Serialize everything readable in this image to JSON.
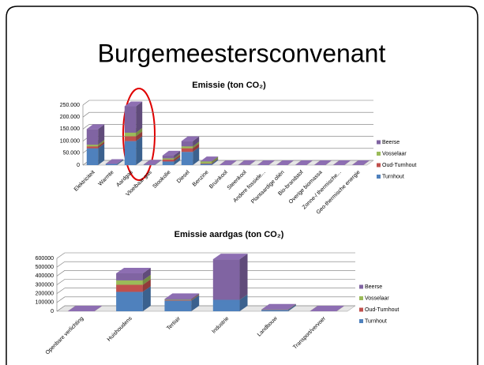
{
  "title": "Burgemeestersconvenant",
  "chart_data": [
    {
      "type": "bar3d-stacked",
      "title": "Emissie (ton CO₂)",
      "categories": [
        "Elektriciteit",
        "Warmte",
        "Aardgas",
        "Vloeibaar gas",
        "Stookolie",
        "Diesel",
        "Benzine",
        "Bruinkool",
        "Steenkool",
        "Andere fossiele...",
        "Plantaardige oliën",
        "Bio-brandstof",
        "Overige biomassa",
        "Zonne-/ thermische...",
        "Geo-thermische energie"
      ],
      "series": [
        {
          "name": "Turnhout",
          "color": "#4f81bd",
          "values": [
            70000,
            5000,
            100000,
            2000,
            15000,
            55000,
            5000,
            0,
            1000,
            0,
            0,
            0,
            0,
            0,
            0
          ]
        },
        {
          "name": "Oud-Turnhout",
          "color": "#c0504d",
          "values": [
            8000,
            0,
            20000,
            0,
            8000,
            15000,
            2000,
            0,
            0,
            0,
            0,
            0,
            0,
            0,
            0
          ]
        },
        {
          "name": "Vosselaar",
          "color": "#9bbb59",
          "values": [
            7000,
            0,
            15000,
            0,
            5000,
            8000,
            8000,
            0,
            0,
            0,
            0,
            0,
            0,
            0,
            0
          ]
        },
        {
          "name": "Beerse",
          "color": "#8064a2",
          "values": [
            65000,
            0,
            110000,
            0,
            12000,
            22000,
            1000,
            0,
            0,
            0,
            0,
            0,
            0,
            0,
            0
          ]
        }
      ],
      "ylim": [
        0,
        250000
      ],
      "yticks": [
        {
          "value": 0,
          "label": "0"
        },
        {
          "value": 50000,
          "label": "50.000"
        },
        {
          "value": 100000,
          "label": "100.000"
        },
        {
          "value": 150000,
          "label": "150.000"
        },
        {
          "value": 200000,
          "label": "200.000"
        },
        {
          "value": 250000,
          "label": "250.000"
        }
      ],
      "grid": true
    },
    {
      "type": "bar3d-stacked",
      "title": "Emissie aardgas (ton CO₂)",
      "categories": [
        "Openbare verlichting",
        "Huishoudens",
        "Tertiair",
        "Industrie",
        "Landbouw",
        "Transport/vervoer"
      ],
      "series": [
        {
          "name": "Turnhout",
          "color": "#4f81bd",
          "values": [
            0,
            220000,
            120000,
            130000,
            15000,
            0
          ]
        },
        {
          "name": "Oud-Turnhout",
          "color": "#c0504d",
          "values": [
            0,
            80000,
            5000,
            0,
            2000,
            0
          ]
        },
        {
          "name": "Vosselaar",
          "color": "#9bbb59",
          "values": [
            0,
            50000,
            5000,
            0,
            1000,
            0
          ]
        },
        {
          "name": "Beerse",
          "color": "#8064a2",
          "values": [
            0,
            80000,
            10000,
            460000,
            2000,
            0
          ]
        }
      ],
      "ylim": [
        0,
        600000
      ],
      "yticks": [
        0,
        100000,
        200000,
        300000,
        400000,
        500000,
        600000
      ],
      "grid": true
    }
  ]
}
